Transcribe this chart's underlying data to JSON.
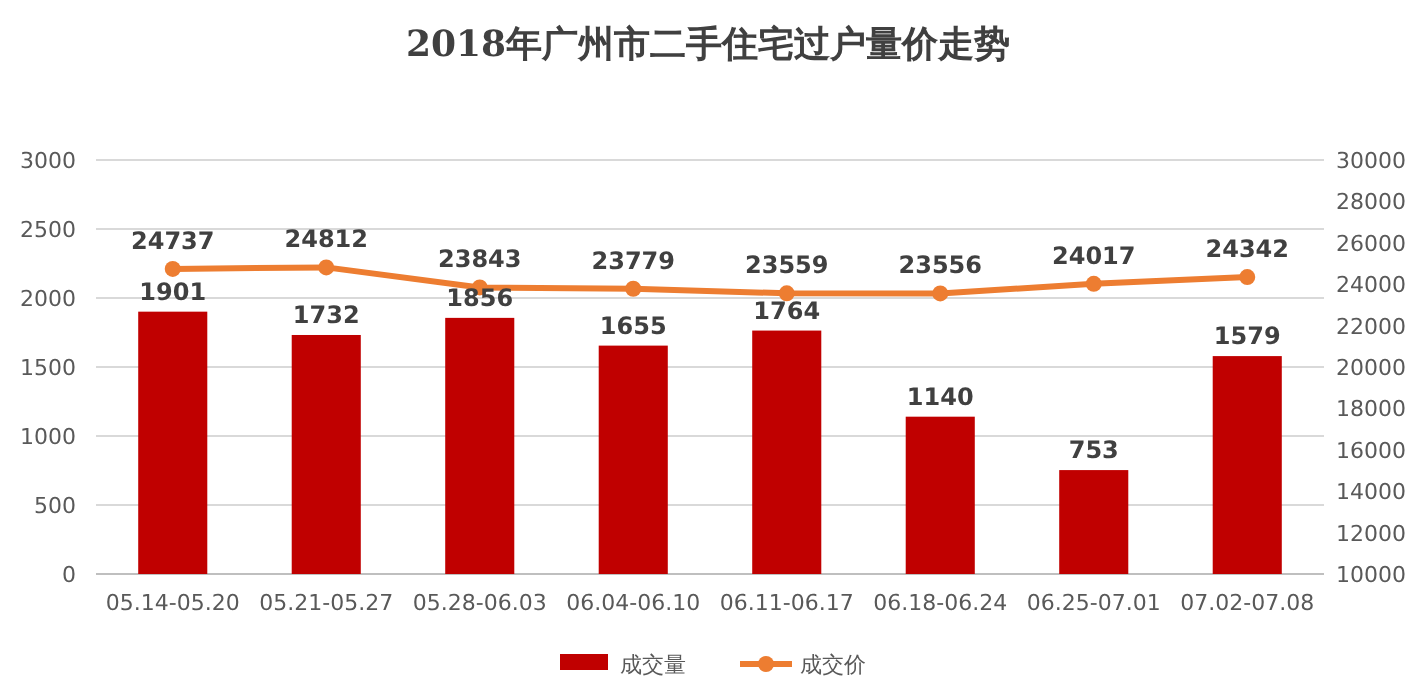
{
  "chart_data": {
    "type": "bar",
    "title": "2018年广州市二手住宅过户量价走势",
    "categories": [
      "05.14-05.20",
      "05.21-05.27",
      "05.28-06.03",
      "06.04-06.10",
      "06.11-06.17",
      "06.18-06.24",
      "06.25-07.01",
      "07.02-07.08"
    ],
    "series": [
      {
        "name": "成交量",
        "color": "#c00000",
        "values": [
          1901,
          1732,
          1856,
          1655,
          1764,
          1140,
          753,
          1579
        ]
      },
      {
        "name": "成交价",
        "type": "line",
        "axis": "y2",
        "color": "#ed7d31",
        "values": [
          24737,
          24812,
          23843,
          23779,
          23559,
          23556,
          24017,
          24342
        ]
      }
    ],
    "ylim": [
      0,
      3000
    ],
    "yticks": [
      0,
      500,
      1000,
      1500,
      2000,
      2500,
      3000
    ],
    "y2lim": [
      10000,
      30000
    ],
    "y2ticks": [
      10000,
      12000,
      14000,
      16000,
      18000,
      20000,
      22000,
      24000,
      26000,
      28000,
      30000
    ],
    "grid": "y",
    "legend": "bottom",
    "data_labels": true,
    "marker": "circle",
    "line_style": "solid"
  }
}
